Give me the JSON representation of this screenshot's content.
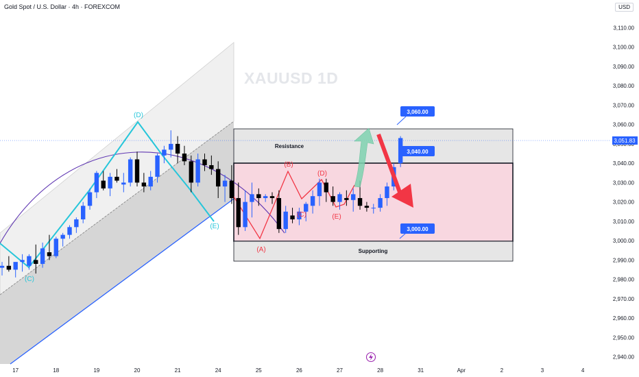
{
  "header": {
    "title": "Gold Spot / U.S. Dollar · 4h · FOREXCOM",
    "currency": "USD"
  },
  "watermark": "XAUUSD 1D",
  "chart_data": {
    "type": "candlestick",
    "symbol": "XAUUSD",
    "timeframe": "4h",
    "ylim": [
      2935,
      3119
    ],
    "y_ticks": [
      2940,
      2950,
      2960,
      2970,
      2980,
      2990,
      3000,
      3010,
      3020,
      3030,
      3040,
      3050,
      3060,
      3070,
      3080,
      3090,
      3100,
      3110
    ],
    "x_ticks": [
      {
        "label": "17",
        "i": 2
      },
      {
        "label": "18",
        "i": 8
      },
      {
        "label": "19",
        "i": 14
      },
      {
        "label": "20",
        "i": 20
      },
      {
        "label": "21",
        "i": 26
      },
      {
        "label": "24",
        "i": 32
      },
      {
        "label": "25",
        "i": 38
      },
      {
        "label": "26",
        "i": 44
      },
      {
        "label": "27",
        "i": 50
      },
      {
        "label": "28",
        "i": 56
      },
      {
        "label": "31",
        "i": 62
      },
      {
        "label": "Apr",
        "i": 68
      },
      {
        "label": "2",
        "i": 74
      },
      {
        "label": "3",
        "i": 80
      },
      {
        "label": "4",
        "i": 86
      }
    ],
    "current_price": 3051.83,
    "current_price_label": "3,051.83",
    "candles": [
      [
        2986,
        2989,
        2982,
        2987
      ],
      [
        2987,
        2992,
        2984,
        2985
      ],
      [
        2985,
        2988,
        2981,
        2989
      ],
      [
        2989,
        2993,
        2984,
        2990
      ],
      [
        2987,
        2993,
        2985,
        2992
      ],
      [
        2990,
        2998,
        2983,
        2988
      ],
      [
        2988,
        2999,
        2986,
        2996
      ],
      [
        2994,
        3003,
        2990,
        2992
      ],
      [
        2992,
        3002,
        2991,
        3001
      ],
      [
        3001,
        3004,
        2997,
        3003
      ],
      [
        3003,
        3008,
        3001,
        3007
      ],
      [
        3007,
        3012,
        3004,
        3011
      ],
      [
        3011,
        3020,
        3009,
        3018
      ],
      [
        3018,
        3027,
        3016,
        3025
      ],
      [
        3025,
        3036,
        3022,
        3035
      ],
      [
        3031,
        3036,
        3026,
        3027
      ],
      [
        3027,
        3035,
        3023,
        3033
      ],
      [
        3033,
        3037,
        3030,
        3031
      ],
      [
        3029,
        3035,
        3025,
        3030
      ],
      [
        3030,
        3043,
        3028,
        3042
      ],
      [
        3042,
        3046,
        3028,
        3030
      ],
      [
        3030,
        3035,
        3025,
        3028
      ],
      [
        3028,
        3036,
        3026,
        3033
      ],
      [
        3033,
        3045,
        3030,
        3044
      ],
      [
        3044,
        3049,
        3040,
        3047
      ],
      [
        3047,
        3057,
        3043,
        3050
      ],
      [
        3050,
        3054,
        3040,
        3045
      ],
      [
        3045,
        3049,
        3039,
        3041
      ],
      [
        3041,
        3044,
        3025,
        3030
      ],
      [
        3030,
        3045,
        3028,
        3042
      ],
      [
        3042,
        3045,
        3036,
        3039
      ],
      [
        3039,
        3044,
        3034,
        3037
      ],
      [
        3037,
        3041,
        3022,
        3028
      ],
      [
        3028,
        3034,
        3020,
        3031
      ],
      [
        3031,
        3039,
        3019,
        3022
      ],
      [
        3022,
        3030,
        3003,
        3007
      ],
      [
        3007,
        3026,
        3005,
        3020
      ],
      [
        3020,
        3030,
        3012,
        3024
      ],
      [
        3024,
        3027,
        3018,
        3022
      ],
      [
        3022,
        3024,
        3020,
        3023
      ],
      [
        3023,
        3025,
        3019,
        3022
      ],
      [
        3022,
        3026,
        3004,
        3006
      ],
      [
        3006,
        3018,
        3004,
        3015
      ],
      [
        3013,
        3017,
        3009,
        3011
      ],
      [
        3011,
        3017,
        3008,
        3015
      ],
      [
        3015,
        3020,
        3010,
        3019
      ],
      [
        3018,
        3026,
        3014,
        3023
      ],
      [
        3023,
        3032,
        3018,
        3030
      ],
      [
        3030,
        3032,
        3020,
        3025
      ],
      [
        3023,
        3028,
        3018,
        3020
      ],
      [
        3020,
        3025,
        3016,
        3024
      ],
      [
        3022,
        3026,
        3018,
        3021
      ],
      [
        3021,
        3027,
        3015,
        3024
      ],
      [
        3022,
        3031,
        3016,
        3018
      ],
      [
        3018,
        3020,
        3015,
        3017
      ],
      [
        3017,
        3019,
        3014,
        3017
      ],
      [
        3017,
        3024,
        3015,
        3022
      ],
      [
        3022,
        3030,
        3018,
        3028
      ],
      [
        3028,
        3040,
        3026,
        3038
      ],
      [
        3040,
        3054,
        3038,
        3053
      ]
    ],
    "annotations": {
      "teal_wave": [
        "(C)",
        "(D)",
        "(E)"
      ],
      "red_wave": [
        "(A)",
        "(B)",
        "(C)",
        "(D)",
        "(E)"
      ],
      "boxes": [
        {
          "label": "Resistance",
          "from": 3040,
          "to": 3059
        },
        {
          "label": "",
          "from": 3000,
          "to": 3040
        },
        {
          "label": "Supporting",
          "from": 2990,
          "to": 3000
        }
      ],
      "price_callouts": [
        "3,060.00",
        "3,040.00",
        "3,000.00"
      ]
    }
  },
  "colors": {
    "bull": "#2962ff",
    "bear": "#000000",
    "teal": "#26c6da",
    "red": "#f23645",
    "pink_zone": "#f8d7e0",
    "gray_zone": "#e6e6e6",
    "channel_dark": "#d3d3d3",
    "channel_light": "#f0f0f0",
    "callout": "#2962ff",
    "arc": "#5e35b1"
  }
}
